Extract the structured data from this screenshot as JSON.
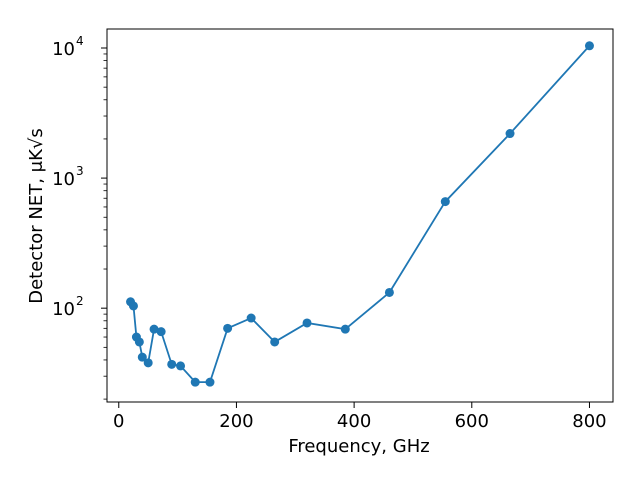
{
  "chart_data": {
    "type": "line",
    "title": "",
    "xlabel": "Frequency, GHz",
    "ylabel_text": "Detector NET, ",
    "ylabel_unit": "μK√s",
    "yscale": "log",
    "xlim": [
      -20,
      840
    ],
    "ylim": [
      19,
      14000
    ],
    "grid": false,
    "legend": "none",
    "x_ticks": [
      {
        "value": 0,
        "label": "0"
      },
      {
        "value": 200,
        "label": "200"
      },
      {
        "value": 400,
        "label": "400"
      },
      {
        "value": 600,
        "label": "600"
      },
      {
        "value": 800,
        "label": "800"
      }
    ],
    "y_ticks": [
      {
        "value": 100,
        "base": "10",
        "exp": "2"
      },
      {
        "value": 1000,
        "base": "10",
        "exp": "3"
      },
      {
        "value": 10000,
        "base": "10",
        "exp": "4"
      }
    ],
    "series": [
      {
        "color": "#1f77b4",
        "points": [
          [
            20,
            112
          ],
          [
            25,
            104
          ],
          [
            30,
            60
          ],
          [
            35,
            55
          ],
          [
            40,
            42
          ],
          [
            50,
            38
          ],
          [
            60,
            69
          ],
          [
            72,
            66
          ],
          [
            90,
            37
          ],
          [
            105,
            36
          ],
          [
            130,
            27
          ],
          [
            155,
            27
          ],
          [
            185,
            70
          ],
          [
            225,
            84
          ],
          [
            265,
            55
          ],
          [
            320,
            77
          ],
          [
            385,
            69
          ],
          [
            460,
            132
          ],
          [
            555,
            660
          ],
          [
            665,
            2200
          ],
          [
            800,
            10400
          ]
        ]
      }
    ]
  }
}
